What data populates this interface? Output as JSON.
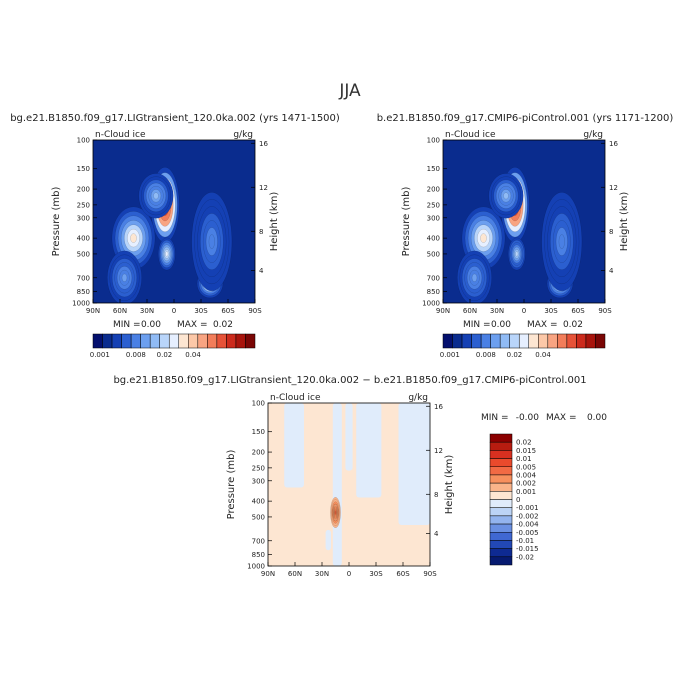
{
  "page": {
    "title": "JJA"
  },
  "colors": {
    "background_field": "#0a2c8e",
    "contour_edge": "#000000"
  },
  "chart_data": [
    {
      "type": "heatmap",
      "title": "bg.e21.B1850.f09_g17.LIGtransient_120.0ka.002 (yrs 1471-1500)",
      "field_label": "n-Cloud ice",
      "units": "g/kg",
      "ylabel": "Pressure (mb)",
      "ylabel_right": "Height (km)",
      "x_ticks": [
        "90N",
        "60N",
        "30N",
        "0",
        "30S",
        "60S",
        "90S"
      ],
      "y_ticks": [
        "100",
        "150",
        "200",
        "250",
        "300",
        "400",
        "500",
        "700",
        "850",
        "1000"
      ],
      "y_right_ticks": [
        "16",
        "12",
        "8",
        "4"
      ],
      "stats": {
        "min_label": "MIN =",
        "min": "0.00",
        "max_label": "MAX =",
        "max": "0.02"
      },
      "colorbar_labels": [
        "0.001",
        "0.008",
        "0.02",
        "0.04"
      ],
      "colorbar_colors": [
        "#04106e",
        "#0a2c8e",
        "#1440b4",
        "#2b5fd0",
        "#4a80e4",
        "#6c9fef",
        "#90bbf5",
        "#b9d5fa",
        "#e6efff",
        "#fde6d2",
        "#fcc8a8",
        "#f8a482",
        "#f27d5a",
        "#e65238",
        "#cc2a1c",
        "#a8140c",
        "#7a0605"
      ],
      "blobs": [
        {
          "lat": 10,
          "p": 250,
          "w": 10,
          "h": 0.42,
          "level": 0.02
        },
        {
          "lat": 8,
          "p": 500,
          "w": 6,
          "h": 0.18,
          "level": 0.007
        },
        {
          "lat": 45,
          "p": 400,
          "w": 15,
          "h": 0.35,
          "level": 0.0085
        },
        {
          "lat": 20,
          "p": 220,
          "w": 12,
          "h": 0.25,
          "level": 0.005
        },
        {
          "lat": -40,
          "p": 760,
          "w": 9,
          "h": 0.16,
          "level": 0.009
        },
        {
          "lat": -42,
          "p": 420,
          "w": 14,
          "h": 0.55,
          "level": 0.0035
        },
        {
          "lat": 55,
          "p": 700,
          "w": 12,
          "h": 0.3,
          "level": 0.004
        }
      ]
    },
    {
      "type": "heatmap",
      "title": "b.e21.B1850.f09_g17.CMIP6-piControl.001 (yrs 1171-1200)",
      "field_label": "n-Cloud ice",
      "units": "g/kg",
      "ylabel": "Pressure (mb)",
      "ylabel_right": "Height (km)",
      "x_ticks": [
        "90N",
        "60N",
        "30N",
        "0",
        "30S",
        "60S",
        "90S"
      ],
      "y_ticks": [
        "100",
        "150",
        "200",
        "250",
        "300",
        "400",
        "500",
        "700",
        "850",
        "1000"
      ],
      "y_right_ticks": [
        "16",
        "12",
        "8",
        "4"
      ],
      "stats": {
        "min_label": "MIN =",
        "min": "0.00",
        "max_label": "MAX =",
        "max": "0.02"
      },
      "colorbar_labels": [
        "0.001",
        "0.008",
        "0.02",
        "0.04"
      ],
      "colorbar_colors": [
        "#04106e",
        "#0a2c8e",
        "#1440b4",
        "#2b5fd0",
        "#4a80e4",
        "#6c9fef",
        "#90bbf5",
        "#b9d5fa",
        "#e6efff",
        "#fde6d2",
        "#fcc8a8",
        "#f8a482",
        "#f27d5a",
        "#e65238",
        "#cc2a1c",
        "#a8140c",
        "#7a0605"
      ],
      "blobs": [
        {
          "lat": 10,
          "p": 250,
          "w": 10,
          "h": 0.42,
          "level": 0.0195
        },
        {
          "lat": 8,
          "p": 500,
          "w": 6,
          "h": 0.18,
          "level": 0.0065
        },
        {
          "lat": 45,
          "p": 400,
          "w": 15,
          "h": 0.35,
          "level": 0.0085
        },
        {
          "lat": 20,
          "p": 220,
          "w": 12,
          "h": 0.25,
          "level": 0.005
        },
        {
          "lat": -40,
          "p": 760,
          "w": 9,
          "h": 0.16,
          "level": 0.0085
        },
        {
          "lat": -42,
          "p": 420,
          "w": 14,
          "h": 0.55,
          "level": 0.0035
        },
        {
          "lat": 55,
          "p": 700,
          "w": 12,
          "h": 0.3,
          "level": 0.004
        }
      ]
    },
    {
      "type": "heatmap",
      "title": "bg.e21.B1850.f09_g17.LIGtransient_120.0ka.002 − b.e21.B1850.f09_g17.CMIP6-piControl.001",
      "field_label": "n-Cloud ice",
      "units": "g/kg",
      "ylabel": "Pressure (mb)",
      "ylabel_right": "Height (km)",
      "x_ticks": [
        "90N",
        "60N",
        "30N",
        "0",
        "30S",
        "60S",
        "90S"
      ],
      "y_ticks": [
        "100",
        "150",
        "200",
        "250",
        "300",
        "400",
        "500",
        "700",
        "850",
        "1000"
      ],
      "y_right_ticks": [
        "16",
        "12",
        "8",
        "4"
      ],
      "stats": {
        "min_label": "MIN =",
        "min": "-0.00",
        "max_label": "MAX =",
        "max": "0.00"
      },
      "colorbar_labels": [
        "0.02",
        "0.015",
        "0.01",
        "0.005",
        "0.004",
        "0.002",
        "0.001",
        "0",
        "-0.001",
        "-0.002",
        "-0.004",
        "-0.005",
        "-0.01",
        "-0.015",
        "-0.02"
      ],
      "colorbar_colors": [
        "#8b0000",
        "#b71c10",
        "#d83020",
        "#ea4a2c",
        "#f26a44",
        "#f7905e",
        "#fab48a",
        "#fde6d2",
        "#e0ecfb",
        "#bcd4f6",
        "#93b4ee",
        "#6a90e2",
        "#4068d2",
        "#2248b6",
        "#0e2a92",
        "#061a70"
      ],
      "base_level": 0.0005,
      "patches": [
        {
          "lon0": 72,
          "lon1": 50,
          "p0": 100,
          "p1": 330,
          "level": -0.0005
        },
        {
          "lon0": 18,
          "lon1": 8,
          "p0": 100,
          "p1": 1000,
          "level": -0.0005
        },
        {
          "lon0": -8,
          "lon1": -36,
          "p0": 100,
          "p1": 380,
          "level": -0.0005
        },
        {
          "lon0": -55,
          "lon1": -90,
          "p0": 100,
          "p1": 560,
          "level": -0.0005
        },
        {
          "lon0": 26,
          "lon1": 20,
          "p0": 600,
          "p1": 800,
          "level": -0.0005
        },
        {
          "lon0": 4,
          "lon1": -4,
          "p0": 100,
          "p1": 260,
          "level": -0.0005
        }
      ],
      "blobs": [
        {
          "lat": 15,
          "p": 470,
          "w": 3.5,
          "h": 0.17,
          "level": 0.003
        },
        {
          "lat": 15,
          "p": 470,
          "w": 1.8,
          "h": 0.09,
          "level": 0.0045
        }
      ]
    }
  ]
}
